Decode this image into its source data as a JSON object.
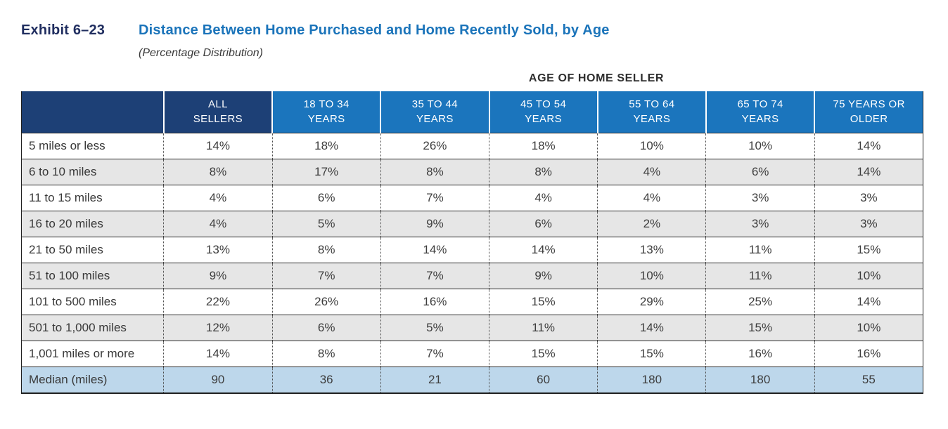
{
  "exhibit": {
    "label": "Exhibit 6–23",
    "title": "Distance Between Home Purchased and Home Recently Sold, by Age",
    "subtitle": "(Percentage Distribution)"
  },
  "table": {
    "super_header": "AGE OF HOME SELLER",
    "header": {
      "corner": "",
      "columns": [
        "ALL\nSELLERS",
        "18 TO 34\nYEARS",
        "35 TO 44\nYEARS",
        "45 TO 54\nYEARS",
        "55 TO 64\nYEARS",
        "65 TO 74\nYEARS",
        "75 YEARS OR\nOLDER"
      ]
    },
    "rows": [
      {
        "label": "5 miles or less",
        "values": [
          "14%",
          "18%",
          "26%",
          "18%",
          "10%",
          "10%",
          "14%"
        ]
      },
      {
        "label": "6 to 10 miles",
        "values": [
          "8%",
          "17%",
          "8%",
          "8%",
          "4%",
          "6%",
          "14%"
        ]
      },
      {
        "label": "11 to 15 miles",
        "values": [
          "4%",
          "6%",
          "7%",
          "4%",
          "4%",
          "3%",
          "3%"
        ]
      },
      {
        "label": "16 to 20 miles",
        "values": [
          "4%",
          "5%",
          "9%",
          "6%",
          "2%",
          "3%",
          "3%"
        ]
      },
      {
        "label": "21 to 50 miles",
        "values": [
          "13%",
          "8%",
          "14%",
          "14%",
          "13%",
          "11%",
          "15%"
        ]
      },
      {
        "label": "51 to 100 miles",
        "values": [
          "9%",
          "7%",
          "7%",
          "9%",
          "10%",
          "11%",
          "10%"
        ]
      },
      {
        "label": "101 to 500 miles",
        "values": [
          "22%",
          "26%",
          "16%",
          "15%",
          "29%",
          "25%",
          "14%"
        ]
      },
      {
        "label": "501 to 1,000 miles",
        "values": [
          "12%",
          "6%",
          "5%",
          "11%",
          "14%",
          "15%",
          "10%"
        ]
      },
      {
        "label": "1,001 miles or more",
        "values": [
          "14%",
          "8%",
          "7%",
          "15%",
          "15%",
          "16%",
          "16%"
        ]
      }
    ],
    "median_row": {
      "label": "Median (miles)",
      "values": [
        "90",
        "36",
        "21",
        "60",
        "180",
        "180",
        "55"
      ]
    }
  },
  "colors": {
    "header_dark_navy": "#1d4076",
    "header_blue": "#1b75bd",
    "title_navy": "#1f2d5f",
    "title_blue": "#1b74ba",
    "zebra_gray": "#e6e6e6",
    "median_blue": "#bdd7eb"
  }
}
